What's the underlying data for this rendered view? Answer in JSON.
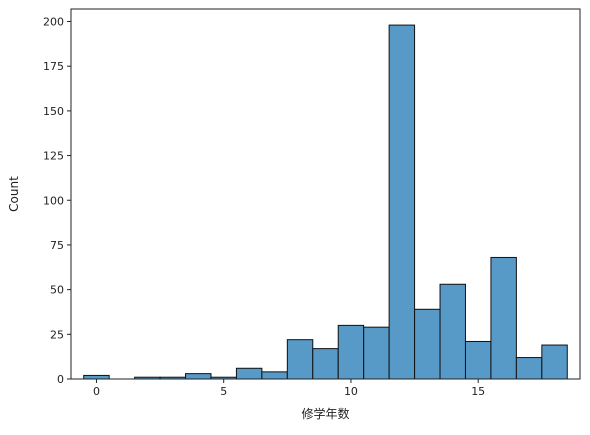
{
  "chart_data": {
    "type": "bar",
    "style": "histogram",
    "xlabel": "修学年数",
    "ylabel": "Count",
    "xlim": [
      -1,
      19
    ],
    "ylim": [
      0,
      207
    ],
    "x_ticks": [
      0,
      5,
      10,
      15
    ],
    "y_ticks": [
      0,
      25,
      50,
      75,
      100,
      125,
      150,
      175,
      200
    ],
    "bar_color": "#5799c7",
    "edge_color": "#111111",
    "bins": [
      {
        "start": -0.5,
        "end": 0.5,
        "count": 2
      },
      {
        "start": 0.5,
        "end": 1.5,
        "count": 0
      },
      {
        "start": 1.5,
        "end": 2.5,
        "count": 1
      },
      {
        "start": 2.5,
        "end": 3.5,
        "count": 1
      },
      {
        "start": 3.5,
        "end": 4.5,
        "count": 3
      },
      {
        "start": 4.5,
        "end": 5.5,
        "count": 1
      },
      {
        "start": 5.5,
        "end": 6.5,
        "count": 6
      },
      {
        "start": 6.5,
        "end": 7.5,
        "count": 4
      },
      {
        "start": 7.5,
        "end": 8.5,
        "count": 22
      },
      {
        "start": 8.5,
        "end": 9.5,
        "count": 17
      },
      {
        "start": 9.5,
        "end": 10.5,
        "count": 30
      },
      {
        "start": 10.5,
        "end": 11.5,
        "count": 29
      },
      {
        "start": 11.5,
        "end": 12.5,
        "count": 198
      },
      {
        "start": 12.5,
        "end": 13.5,
        "count": 39
      },
      {
        "start": 13.5,
        "end": 14.5,
        "count": 53
      },
      {
        "start": 14.5,
        "end": 15.5,
        "count": 21
      },
      {
        "start": 15.5,
        "end": 16.5,
        "count": 68
      },
      {
        "start": 16.5,
        "end": 17.5,
        "count": 12
      },
      {
        "start": 17.5,
        "end": 18.5,
        "count": 19
      }
    ]
  }
}
